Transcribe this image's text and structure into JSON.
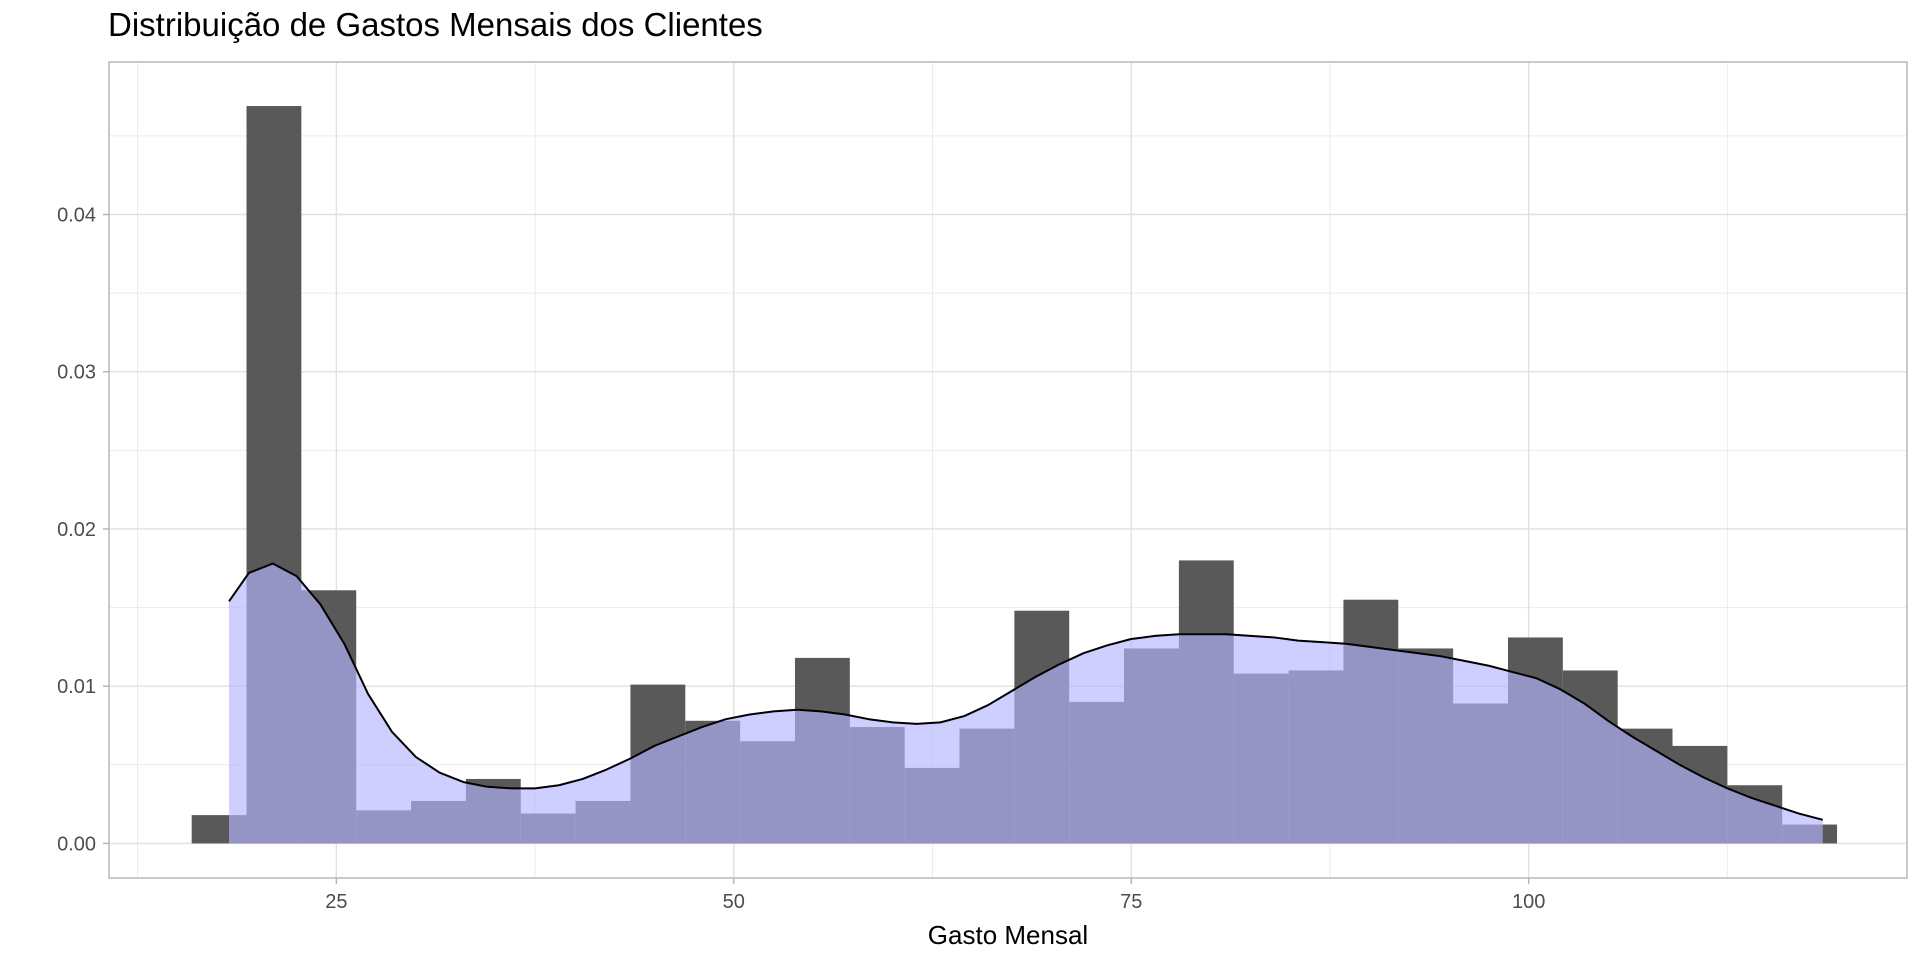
{
  "chart_data": {
    "type": "bar",
    "title": "Distribuição de Gastos Mensais dos Clientes",
    "xlabel": "Gasto Mensal",
    "ylabel": "",
    "xlim": [
      10.7,
      123.8
    ],
    "ylim": [
      -0.0022,
      0.0497
    ],
    "x_ticks": [
      25,
      50,
      75,
      100
    ],
    "x_tick_labels": [
      "25",
      "50",
      "75",
      "100"
    ],
    "y_ticks": [
      0.0,
      0.01,
      0.02,
      0.03,
      0.04
    ],
    "y_tick_labels": [
      "0.00",
      "0.01",
      "0.02",
      "0.03",
      "0.04"
    ],
    "grid": true,
    "colors": {
      "histogram": "#595959",
      "density_fill": "#b3b3ff",
      "density_fill_opacity": 0.65,
      "density_line": "#000000",
      "grid": "#ebebeb",
      "panel_border": "#333333"
    },
    "series": [
      {
        "type": "histogram",
        "bin_width": 3.45,
        "bins": [
          {
            "x0": 15.9,
            "x1": 19.35,
            "y": 0.0018
          },
          {
            "x0": 19.35,
            "x1": 22.8,
            "y": 0.0469
          },
          {
            "x0": 22.8,
            "x1": 26.25,
            "y": 0.0161
          },
          {
            "x0": 26.25,
            "x1": 29.7,
            "y": 0.0021
          },
          {
            "x0": 29.7,
            "x1": 33.15,
            "y": 0.0027
          },
          {
            "x0": 33.15,
            "x1": 36.6,
            "y": 0.0041
          },
          {
            "x0": 36.6,
            "x1": 40.05,
            "y": 0.0019
          },
          {
            "x0": 40.05,
            "x1": 43.5,
            "y": 0.0027
          },
          {
            "x0": 43.5,
            "x1": 46.95,
            "y": 0.0101
          },
          {
            "x0": 46.95,
            "x1": 50.4,
            "y": 0.0078
          },
          {
            "x0": 50.4,
            "x1": 53.85,
            "y": 0.0065
          },
          {
            "x0": 53.85,
            "x1": 57.3,
            "y": 0.0118
          },
          {
            "x0": 57.3,
            "x1": 60.75,
            "y": 0.0074
          },
          {
            "x0": 60.75,
            "x1": 64.2,
            "y": 0.0048
          },
          {
            "x0": 64.2,
            "x1": 67.65,
            "y": 0.0073
          },
          {
            "x0": 67.65,
            "x1": 71.1,
            "y": 0.0148
          },
          {
            "x0": 71.1,
            "x1": 74.55,
            "y": 0.009
          },
          {
            "x0": 74.55,
            "x1": 78.0,
            "y": 0.0124
          },
          {
            "x0": 78.0,
            "x1": 81.45,
            "y": 0.018
          },
          {
            "x0": 81.45,
            "x1": 84.9,
            "y": 0.0108
          },
          {
            "x0": 84.9,
            "x1": 88.35,
            "y": 0.011
          },
          {
            "x0": 88.35,
            "x1": 91.8,
            "y": 0.0155
          },
          {
            "x0": 91.8,
            "x1": 95.25,
            "y": 0.0124
          },
          {
            "x0": 95.25,
            "x1": 98.7,
            "y": 0.0089
          },
          {
            "x0": 98.7,
            "x1": 102.15,
            "y": 0.0131
          },
          {
            "x0": 102.15,
            "x1": 105.6,
            "y": 0.011
          },
          {
            "x0": 105.6,
            "x1": 109.05,
            "y": 0.0073
          },
          {
            "x0": 109.05,
            "x1": 112.5,
            "y": 0.0062
          },
          {
            "x0": 112.5,
            "x1": 115.95,
            "y": 0.0037
          },
          {
            "x0": 115.95,
            "x1": 119.4,
            "y": 0.0012
          }
        ]
      },
      {
        "type": "density",
        "points": [
          [
            18.25,
            0.0154
          ],
          [
            19.5,
            0.0172
          ],
          [
            21.0,
            0.0178
          ],
          [
            22.5,
            0.017
          ],
          [
            24.0,
            0.0152
          ],
          [
            25.5,
            0.0127
          ],
          [
            27.0,
            0.0095
          ],
          [
            28.5,
            0.0071
          ],
          [
            30.0,
            0.0055
          ],
          [
            31.5,
            0.0045
          ],
          [
            33.0,
            0.0039
          ],
          [
            34.5,
            0.0036
          ],
          [
            36.0,
            0.0035
          ],
          [
            37.5,
            0.0035
          ],
          [
            39.0,
            0.0037
          ],
          [
            40.5,
            0.0041
          ],
          [
            42.0,
            0.0047
          ],
          [
            43.5,
            0.0054
          ],
          [
            45.0,
            0.0062
          ],
          [
            46.5,
            0.0068
          ],
          [
            48.0,
            0.0074
          ],
          [
            49.5,
            0.0079
          ],
          [
            51.0,
            0.0082
          ],
          [
            52.5,
            0.0084
          ],
          [
            54.0,
            0.0085
          ],
          [
            55.5,
            0.0084
          ],
          [
            57.0,
            0.0082
          ],
          [
            58.5,
            0.0079
          ],
          [
            60.0,
            0.0077
          ],
          [
            61.5,
            0.0076
          ],
          [
            63.0,
            0.0077
          ],
          [
            64.5,
            0.0081
          ],
          [
            66.0,
            0.0088
          ],
          [
            67.5,
            0.0097
          ],
          [
            69.0,
            0.0106
          ],
          [
            70.5,
            0.0114
          ],
          [
            72.0,
            0.0121
          ],
          [
            73.5,
            0.0126
          ],
          [
            75.0,
            0.013
          ],
          [
            76.5,
            0.0132
          ],
          [
            78.0,
            0.0133
          ],
          [
            79.5,
            0.0133
          ],
          [
            81.0,
            0.0133
          ],
          [
            82.5,
            0.0132
          ],
          [
            84.0,
            0.0131
          ],
          [
            85.5,
            0.0129
          ],
          [
            87.0,
            0.0128
          ],
          [
            88.5,
            0.0127
          ],
          [
            90.0,
            0.0125
          ],
          [
            91.5,
            0.0123
          ],
          [
            93.0,
            0.0121
          ],
          [
            94.5,
            0.0119
          ],
          [
            96.0,
            0.0116
          ],
          [
            97.5,
            0.0113
          ],
          [
            99.0,
            0.0109
          ],
          [
            100.5,
            0.0105
          ],
          [
            102.0,
            0.0098
          ],
          [
            103.5,
            0.0089
          ],
          [
            105.0,
            0.0078
          ],
          [
            106.5,
            0.0068
          ],
          [
            108.0,
            0.0059
          ],
          [
            109.5,
            0.005
          ],
          [
            111.0,
            0.0042
          ],
          [
            112.5,
            0.0035
          ],
          [
            114.0,
            0.0029
          ],
          [
            115.5,
            0.0024
          ],
          [
            117.0,
            0.0019
          ],
          [
            118.5,
            0.0015
          ]
        ]
      }
    ]
  }
}
